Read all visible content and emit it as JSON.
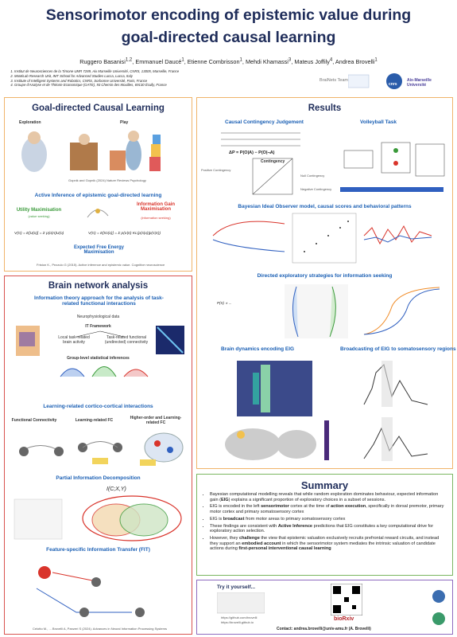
{
  "header": {
    "title": [
      "Sensorimotor encoding of epistemic value during",
      "goal-directed causal learning"
    ],
    "authors": [
      {
        "name": "Ruggero Basanisi",
        "aff": "1,2"
      },
      {
        "name": "Emmanuel Daucé",
        "aff": "1"
      },
      {
        "name": "Etienne Combrisson",
        "aff": "1"
      },
      {
        "name": "Mehdi Khamassi",
        "aff": "3"
      },
      {
        "name": "Mateus Joffily",
        "aff": "4"
      },
      {
        "name": "Andrea Brovelli",
        "aff": "1"
      }
    ],
    "affiliations": [
      "Institut de Neurosciences de la Timone UMR 7289, Aix Marseille Université, CNRS, 13005, Marseille, France",
      "MoMiLab Research Unit, IMT School for Advanced Studies Lucca, Lucca, Italy",
      "Institute of Intelligent Systems and Robotics, CNRS, Sorbonne Université, Paris, France",
      "Groupe d'Analyse et de Théorie Economique (GATE), 93 Chemin des Mouilles, 69130 Écully, France"
    ],
    "logos": [
      "BraiNets Team",
      "cnrs",
      "Aix-Marseille Université"
    ]
  },
  "goal_panel": {
    "title": "Goal-directed Causal Learning",
    "stages": [
      "Exploration",
      "Play"
    ],
    "figure_caption": "Gopnik and Gopnik (2024) Nature Reviews Psychology",
    "subtitle": "Active Inference of epistemic goal-directed learning",
    "utility": "Utility Maximisation",
    "utility_note": "(value seeking)",
    "info_gain": "Information Gain Maximisation",
    "info_gain_note": "(information seeking)",
    "utility_eq": "V(π) = E[U(o)] = Σ p(o|π)U(o)",
    "info_gain_eq": "V(π) = E[IG(o)] = Σ p(o|π) KL(p(s|o)|p(s|π))",
    "efe": "Expected Free Energy Maximisation",
    "citation": "Friston K., Pezzulo G (2015). Active inference and epistemic value. Cognitive neuroscience"
  },
  "brain_panel": {
    "title": "Brain network analysis",
    "subtitle": "Information theory approach for the analysis of task-related functional interactions",
    "data_label": "Neurophysiological data",
    "framework": "IT Framework",
    "local": "Local task-related brain activity",
    "connectivity": "Task-related functional (undirected) connectivity",
    "group": "Group-level statistical inferences",
    "section2": "Learning-related cortico-cortical interactions",
    "fc_labels": [
      "Functional Connectivity",
      "Learning-related FC",
      "Higher-order and Learning-related FC"
    ],
    "section3": "Partial Information Decomposition",
    "pid_formula": "I(C;X,Y)",
    "section4": "Feature-specific Information Transfer (FIT)",
    "citation": "Celotto M., ... Brovelli A, Panzeri S (2024). Advances in Neural Information Processing Systems"
  },
  "results": {
    "title": "Results",
    "causal": "Causal Contingency Judgement",
    "volley": "Volleyball Task",
    "delta_p": "ΔP = P(O|A) − P(O|¬A)",
    "contingency": "Contingency",
    "positive": "Positive Contingency",
    "null": "Null Contingency",
    "negative": "Negative Contingency",
    "bayes": "Bayesian Ideal Observer model, causal scores and behavioral patterns",
    "directed": "Directed exploratory strategies for information seeking",
    "brain_dyn": "Brain dynamics encoding EIG",
    "broadcast": "Broadcasting of EIG to somatosensory regions"
  },
  "summary": {
    "title": "Summary",
    "bullets": [
      [
        {
          "text": "Bayesian computational modelling reveals that while random exploration dominates behaviour, expected information gain ("
        },
        {
          "text": "EIG",
          "bold": true
        },
        {
          "text": ") explains a significant proportion of exploratory choices in a subset of sessions."
        }
      ],
      [
        {
          "text": "EIG is encoded in the left "
        },
        {
          "text": "sensorimotor",
          "bold": true
        },
        {
          "text": " cortex at the time of "
        },
        {
          "text": "action execution",
          "bold": true
        },
        {
          "text": ", specifically in dorsal premotor, primary motor cortex and primary somatosensory cortex"
        }
      ],
      [
        {
          "text": "EIG is "
        },
        {
          "text": "broadcast",
          "bold": true
        },
        {
          "text": " from motor areas to primary somatosensory cortex"
        }
      ],
      [
        {
          "text": "These findings are consistent with "
        },
        {
          "text": "Active Inference",
          "bold": true
        },
        {
          "text": " predictions that EIG constitutes a key computational drive for exploratory action selection."
        }
      ],
      [
        {
          "text": "However, they "
        },
        {
          "text": "challenge",
          "bold": true
        },
        {
          "text": " the view that epistemic valuation exclusively recruits prefrontal reward circuits, and instead they support an "
        },
        {
          "text": "embodied account",
          "bold": true
        },
        {
          "text": " in which the sensorimotor system mediates the intrinsic valuation of candidate actions during "
        },
        {
          "text": "first-personal interventional causal learning",
          "bold": true
        }
      ]
    ]
  },
  "try": {
    "title": "Try it yourself...",
    "links": [
      "https://github.com/brovelli",
      "https://brovelli.github.io"
    ],
    "preprint": "bioRxiv",
    "contact": "Contact: andrea.brovelli@univ-amu.fr (A. Brovelli)"
  }
}
